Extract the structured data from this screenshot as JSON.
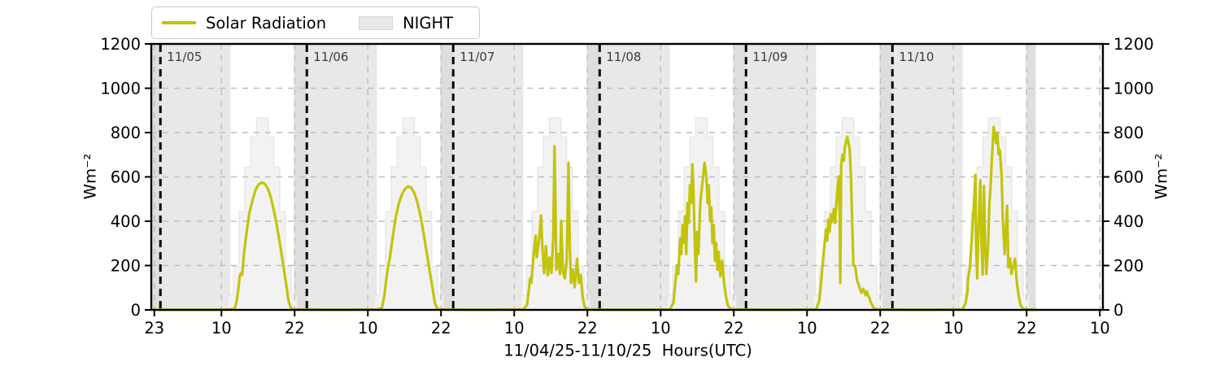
{
  "chart_data": {
    "type": "line",
    "title": "",
    "xlabel": "11/04/25-11/10/25  Hours(UTC)",
    "ylabel": "Wm⁻²",
    "ylabel_right": "Wm⁻²",
    "ylim": [
      0,
      1200
    ],
    "yticks": [
      0,
      200,
      400,
      600,
      800,
      1000,
      1200
    ],
    "grid": true,
    "legend_position": "top-left",
    "legend": [
      {
        "label": "Solar Radiation",
        "type": "line",
        "color": "#c3c30d"
      },
      {
        "label": "NIGHT",
        "type": "patch",
        "color": "#e8e8e8"
      }
    ],
    "x_axis": {
      "unit": "hours UTC, hour index counted from 11/04 00:00",
      "start_hour": 22.5,
      "end_hour": 178.5,
      "ticks": [
        {
          "hour": 23,
          "label": "23"
        },
        {
          "hour": 34,
          "label": "10"
        },
        {
          "hour": 46,
          "label": "22"
        },
        {
          "hour": 58,
          "label": "10"
        },
        {
          "hour": 70,
          "label": "22"
        },
        {
          "hour": 82,
          "label": "10"
        },
        {
          "hour": 94,
          "label": "22"
        },
        {
          "hour": 106,
          "label": "10"
        },
        {
          "hour": 118,
          "label": "22"
        },
        {
          "hour": 130,
          "label": "10"
        },
        {
          "hour": 142,
          "label": "22"
        },
        {
          "hour": 154,
          "label": "10"
        },
        {
          "hour": 166,
          "label": "22"
        },
        {
          "hour": 178,
          "label": "10"
        }
      ]
    },
    "day_boundaries": [
      {
        "hour": 24,
        "label": "11/05"
      },
      {
        "hour": 48,
        "label": "11/06"
      },
      {
        "hour": 72,
        "label": "11/07"
      },
      {
        "hour": 96,
        "label": "11/08"
      },
      {
        "hour": 120,
        "label": "11/09"
      },
      {
        "hour": 144,
        "label": "11/10"
      }
    ],
    "night_spans": [
      [
        22.5,
        35.5
      ],
      [
        45.9,
        59.5
      ],
      [
        69.9,
        83.5
      ],
      [
        93.9,
        107.5
      ],
      [
        117.9,
        131.5
      ],
      [
        141.9,
        155.5
      ],
      [
        165.9,
        167.5
      ]
    ],
    "night_overlap_spans": [
      [
        22.5,
        24
      ],
      [
        45.9,
        48
      ],
      [
        69.9,
        72
      ],
      [
        93.9,
        96
      ],
      [
        117.9,
        120
      ],
      [
        141.9,
        144
      ],
      [
        165.9,
        167.5
      ]
    ],
    "clear_sky_envelope": {
      "description": "stepped clear-sky pyramid drawn behind the measured line each day",
      "peak": 866,
      "step_values": [
        66,
        198,
        444,
        645,
        780,
        866,
        866,
        780,
        645,
        444,
        198,
        66
      ],
      "days": [
        {
          "sunrise": 35.5,
          "sunset": 45.9
        },
        {
          "sunrise": 59.5,
          "sunset": 69.9
        },
        {
          "sunrise": 83.5,
          "sunset": 93.9
        },
        {
          "sunrise": 107.5,
          "sunset": 117.9
        },
        {
          "sunrise": 131.5,
          "sunset": 141.9
        },
        {
          "sunrise": 155.5,
          "sunset": 165.9
        }
      ]
    },
    "daily_peaks_wm2": [
      575,
      557,
      738,
      664,
      781,
      826
    ],
    "series": [
      {
        "name": "Solar Radiation",
        "color": "#c3c30d",
        "points": [
          [
            23.0,
            1
          ],
          [
            28,
            1
          ],
          [
            33,
            1
          ],
          [
            35.5,
            2
          ],
          [
            36.2,
            6
          ],
          [
            36.5,
            40
          ],
          [
            36.8,
            100
          ],
          [
            37.0,
            152
          ],
          [
            37.2,
            166
          ],
          [
            37.4,
            158
          ],
          [
            37.7,
            255
          ],
          [
            38.1,
            345
          ],
          [
            38.6,
            440
          ],
          [
            39.1,
            495
          ],
          [
            39.6,
            542
          ],
          [
            40.1,
            566
          ],
          [
            40.6,
            575
          ],
          [
            41.1,
            569
          ],
          [
            41.6,
            548
          ],
          [
            42.1,
            508
          ],
          [
            42.6,
            448
          ],
          [
            43.1,
            378
          ],
          [
            43.6,
            298
          ],
          [
            44.1,
            208
          ],
          [
            44.6,
            118
          ],
          [
            45.0,
            40
          ],
          [
            45.4,
            8
          ],
          [
            45.9,
            2
          ],
          [
            50,
            1
          ],
          [
            55,
            1
          ],
          [
            59.5,
            2
          ],
          [
            60.3,
            8
          ],
          [
            60.7,
            62
          ],
          [
            61.0,
            132
          ],
          [
            61.3,
            192
          ],
          [
            61.6,
            232
          ],
          [
            62.1,
            332
          ],
          [
            62.6,
            422
          ],
          [
            63.1,
            482
          ],
          [
            63.6,
            522
          ],
          [
            64.1,
            546
          ],
          [
            64.6,
            557
          ],
          [
            65.1,
            552
          ],
          [
            65.6,
            528
          ],
          [
            66.1,
            488
          ],
          [
            66.6,
            428
          ],
          [
            67.1,
            352
          ],
          [
            67.6,
            268
          ],
          [
            68.1,
            182
          ],
          [
            68.6,
            98
          ],
          [
            69.0,
            30
          ],
          [
            69.4,
            6
          ],
          [
            69.9,
            2
          ],
          [
            74,
            1
          ],
          [
            79,
            1
          ],
          [
            83.5,
            2
          ],
          [
            84.1,
            22
          ],
          [
            84.4,
            92
          ],
          [
            84.6,
            142
          ],
          [
            84.8,
            122
          ],
          [
            85.1,
            222
          ],
          [
            85.5,
            334
          ],
          [
            85.7,
            238
          ],
          [
            86.0,
            298
          ],
          [
            86.4,
            426
          ],
          [
            86.6,
            288
          ],
          [
            86.9,
            166
          ],
          [
            87.2,
            288
          ],
          [
            87.5,
            156
          ],
          [
            87.8,
            236
          ],
          [
            88.1,
            166
          ],
          [
            88.4,
            330
          ],
          [
            88.6,
            738
          ],
          [
            88.8,
            400
          ],
          [
            88.9,
            182
          ],
          [
            89.2,
            252
          ],
          [
            89.5,
            162
          ],
          [
            89.7,
            402
          ],
          [
            90.0,
            168
          ],
          [
            90.3,
            142
          ],
          [
            90.6,
            222
          ],
          [
            90.9,
            664
          ],
          [
            91.1,
            298
          ],
          [
            91.3,
            122
          ],
          [
            91.6,
            182
          ],
          [
            91.9,
            102
          ],
          [
            92.3,
            231
          ],
          [
            92.6,
            122
          ],
          [
            92.9,
            158
          ],
          [
            93.2,
            62
          ],
          [
            93.5,
            16
          ],
          [
            93.9,
            2
          ],
          [
            98,
            1
          ],
          [
            103,
            1
          ],
          [
            107.5,
            2
          ],
          [
            108.1,
            32
          ],
          [
            108.4,
            122
          ],
          [
            108.7,
            202
          ],
          [
            108.9,
            162
          ],
          [
            109.2,
            322
          ],
          [
            109.4,
            252
          ],
          [
            109.6,
            382
          ],
          [
            109.8,
            302
          ],
          [
            110.0,
            422
          ],
          [
            110.2,
            252
          ],
          [
            110.4,
            482
          ],
          [
            110.6,
            392
          ],
          [
            110.8,
            562
          ],
          [
            111.0,
            482
          ],
          [
            111.2,
            657
          ],
          [
            111.4,
            522
          ],
          [
            111.6,
            302
          ],
          [
            111.8,
            128
          ],
          [
            112.0,
            352
          ],
          [
            112.2,
            252
          ],
          [
            112.5,
            482
          ],
          [
            112.8,
            560
          ],
          [
            113.0,
            610
          ],
          [
            113.2,
            664
          ],
          [
            113.5,
            600
          ],
          [
            113.7,
            482
          ],
          [
            113.9,
            562
          ],
          [
            114.1,
            402
          ],
          [
            114.3,
            462
          ],
          [
            114.5,
            302
          ],
          [
            114.7,
            382
          ],
          [
            114.9,
            222
          ],
          [
            115.1,
            302
          ],
          [
            115.3,
            182
          ],
          [
            115.5,
            262
          ],
          [
            115.8,
            152
          ],
          [
            116.1,
            222
          ],
          [
            116.4,
            122
          ],
          [
            116.7,
            62
          ],
          [
            117.0,
            22
          ],
          [
            117.4,
            6
          ],
          [
            117.9,
            2
          ],
          [
            122,
            1
          ],
          [
            127,
            1
          ],
          [
            131.5,
            2
          ],
          [
            132.0,
            42
          ],
          [
            132.3,
            122
          ],
          [
            132.6,
            222
          ],
          [
            132.9,
            302
          ],
          [
            133.1,
            362
          ],
          [
            133.3,
            312
          ],
          [
            133.5,
            407
          ],
          [
            133.7,
            352
          ],
          [
            133.9,
            432
          ],
          [
            134.1,
            396
          ],
          [
            134.4,
            455
          ],
          [
            134.6,
            392
          ],
          [
            135.0,
            554
          ],
          [
            135.2,
            602
          ],
          [
            135.35,
            420
          ],
          [
            135.45,
            121
          ],
          [
            135.6,
            650
          ],
          [
            135.8,
            700
          ],
          [
            136.0,
            672
          ],
          [
            136.2,
            732
          ],
          [
            136.4,
            762
          ],
          [
            136.6,
            781
          ],
          [
            136.8,
            752
          ],
          [
            137.0,
            722
          ],
          [
            137.2,
            602
          ],
          [
            137.4,
            402
          ],
          [
            137.6,
            200
          ],
          [
            137.9,
            198
          ],
          [
            138.2,
            134
          ],
          [
            138.5,
            110
          ],
          [
            138.9,
            77
          ],
          [
            139.2,
            95
          ],
          [
            139.6,
            66
          ],
          [
            139.8,
            84
          ],
          [
            140.0,
            66
          ],
          [
            140.2,
            55
          ],
          [
            140.5,
            30
          ],
          [
            140.9,
            10
          ],
          [
            141.4,
            3
          ],
          [
            141.9,
            2
          ],
          [
            146,
            1
          ],
          [
            151,
            1
          ],
          [
            155.5,
            2
          ],
          [
            156.0,
            32
          ],
          [
            156.3,
            82
          ],
          [
            156.4,
            142
          ],
          [
            156.7,
            192
          ],
          [
            157.0,
            320
          ],
          [
            157.3,
            450
          ],
          [
            157.6,
            609
          ],
          [
            157.7,
            310
          ],
          [
            157.9,
            142
          ],
          [
            158.1,
            360
          ],
          [
            158.4,
            584
          ],
          [
            158.6,
            300
          ],
          [
            158.8,
            160
          ],
          [
            159.0,
            560
          ],
          [
            159.2,
            300
          ],
          [
            159.4,
            162
          ],
          [
            159.7,
            300
          ],
          [
            159.9,
            482
          ],
          [
            160.1,
            562
          ],
          [
            160.3,
            682
          ],
          [
            160.6,
            826
          ],
          [
            160.8,
            792
          ],
          [
            161.0,
            752
          ],
          [
            161.2,
            800
          ],
          [
            161.4,
            702
          ],
          [
            161.6,
            722
          ],
          [
            161.9,
            602
          ],
          [
            162.1,
            402
          ],
          [
            162.4,
            252
          ],
          [
            162.8,
            470
          ],
          [
            163.0,
            192
          ],
          [
            163.3,
            232
          ],
          [
            163.5,
            162
          ],
          [
            164.1,
            231
          ],
          [
            164.4,
            122
          ],
          [
            164.7,
            62
          ],
          [
            165.0,
            22
          ],
          [
            165.4,
            6
          ],
          [
            165.9,
            2
          ],
          [
            166.8,
            1
          ],
          [
            167.5,
            1
          ]
        ]
      }
    ],
    "colors": {
      "line": "#c3c30d",
      "night": "#e8e8e8",
      "night_overlap": "rgba(0,0,0,0.045)",
      "clear_sky_fill": "#f2f2f2",
      "clear_sky_edge": "#e4e4e4",
      "grid": "#bdbdbd",
      "axis": "#000000",
      "date_label": "#3a3a3a"
    }
  }
}
